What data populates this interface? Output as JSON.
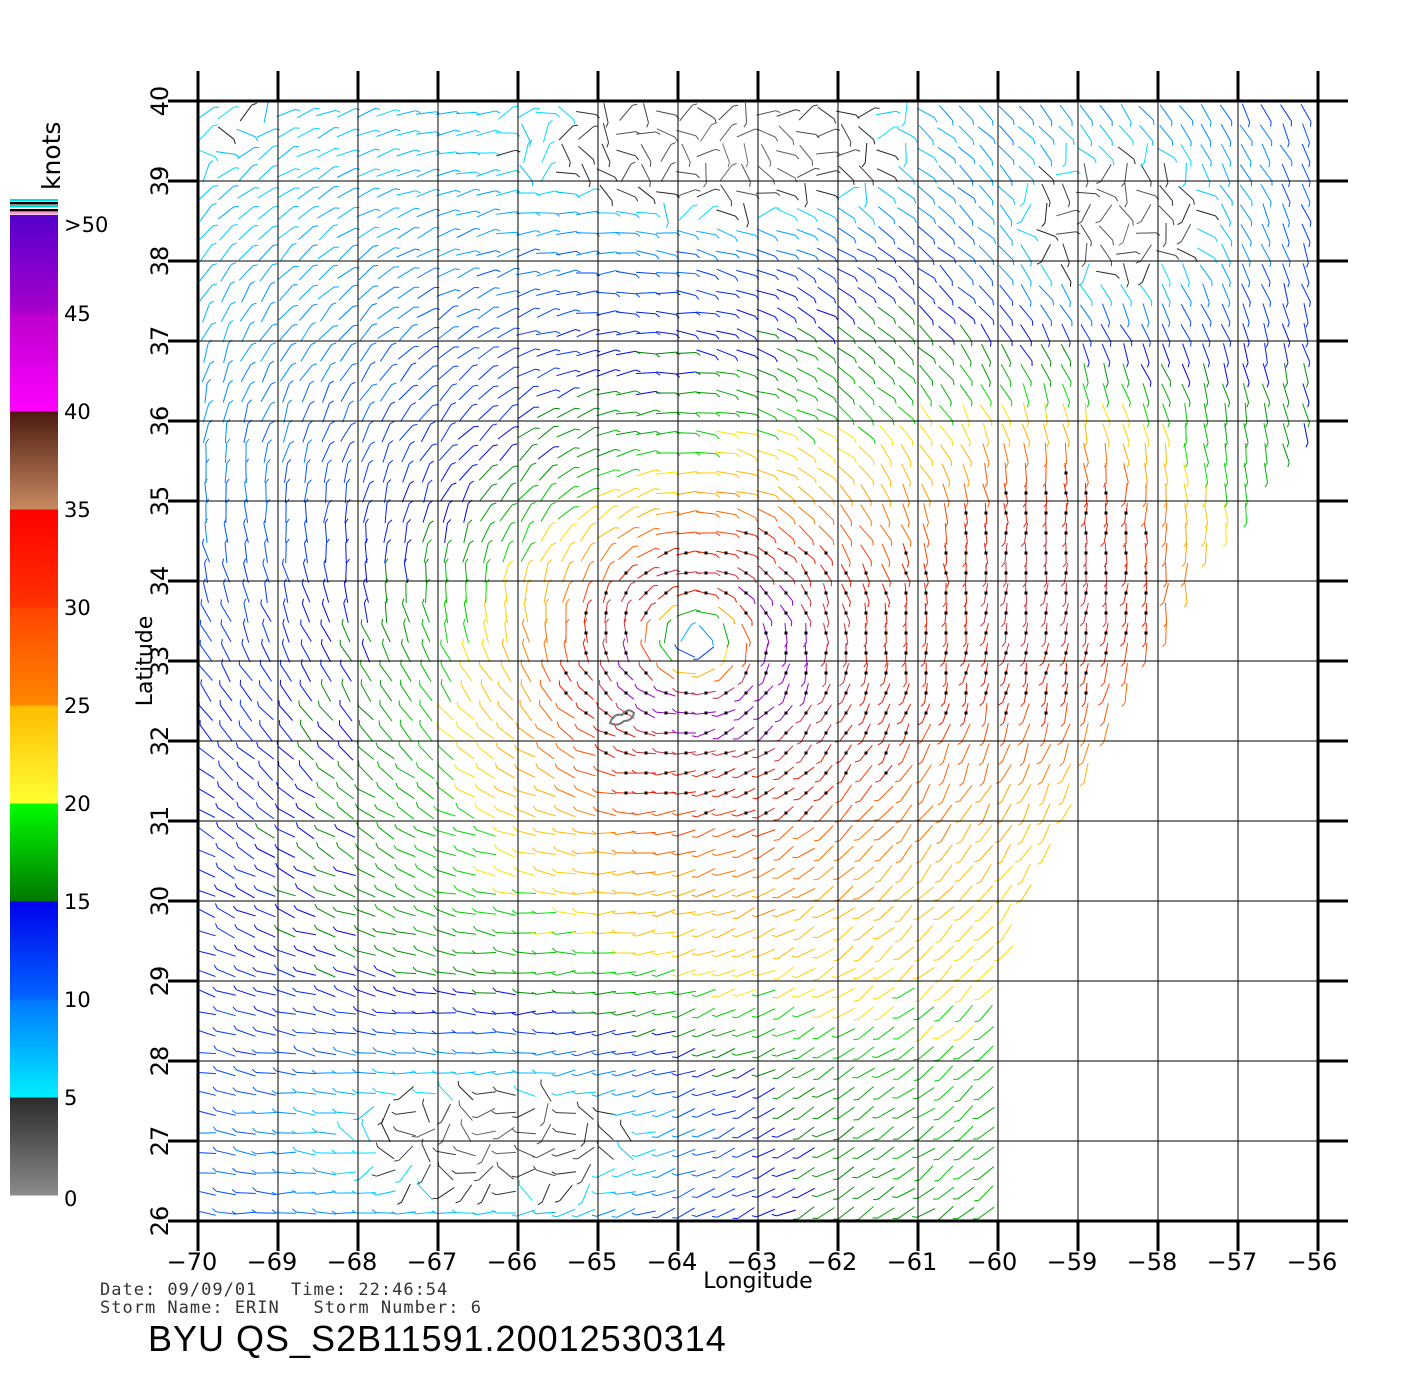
{
  "chart_data": {
    "type": "wind-vector-map",
    "title": "",
    "xlabel": "Longitude",
    "ylabel": "Latitude",
    "xlim": [
      -70,
      -56
    ],
    "ylim": [
      26,
      40
    ],
    "x_ticks": [
      "-70",
      "-69",
      "-68",
      "-67",
      "-66",
      "-65",
      "-64",
      "-63",
      "-62",
      "-61",
      "-60",
      "-59",
      "-58",
      "-57",
      "-56"
    ],
    "y_ticks": [
      "26",
      "27",
      "28",
      "29",
      "30",
      "31",
      "32",
      "33",
      "34",
      "35",
      "36",
      "37",
      "38",
      "39",
      "40"
    ],
    "grid": true,
    "legend": {
      "title": "knots",
      "placement": "left",
      "labels": [
        "0",
        "5",
        "10",
        "15",
        "20",
        "25",
        "30",
        "35",
        "40",
        "45",
        ">50"
      ],
      "bands": [
        {
          "from": 0,
          "to": 5,
          "colors": [
            "#8c8c8c",
            "#2a2a2a"
          ]
        },
        {
          "from": 5,
          "to": 10,
          "colors": [
            "#00eeff",
            "#0077ff"
          ]
        },
        {
          "from": 10,
          "to": 15,
          "colors": [
            "#0066ff",
            "#0000ee"
          ]
        },
        {
          "from": 15,
          "to": 20,
          "colors": [
            "#007700",
            "#00ff00"
          ]
        },
        {
          "from": 20,
          "to": 25,
          "colors": [
            "#ffff33",
            "#ffbb00"
          ]
        },
        {
          "from": 25,
          "to": 30,
          "colors": [
            "#ff8800",
            "#ff4400"
          ]
        },
        {
          "from": 30,
          "to": 35,
          "colors": [
            "#ff3300",
            "#ff0000"
          ]
        },
        {
          "from": 35,
          "to": 40,
          "colors": [
            "#c88a60",
            "#4a1a10"
          ]
        },
        {
          "from": 40,
          "to": 45,
          "colors": [
            "#ff00ff",
            "#bb00cc"
          ]
        },
        {
          "from": 45,
          "to": 50,
          "colors": [
            "#aa00cc",
            "#5500cc"
          ]
        }
      ]
    },
    "storm_center": {
      "lon": -63.7,
      "lat": 33.2,
      "max_wind_knots": 45
    },
    "swath_edge": [
      [
        -56.0,
        40.0
      ],
      [
        -56.0,
        36.0
      ],
      [
        -57.5,
        34.0
      ],
      [
        -59.2,
        31.0
      ],
      [
        -60.0,
        29.0
      ],
      [
        -60.0,
        26.0
      ]
    ],
    "island": {
      "lon": -64.7,
      "lat": 32.3
    }
  },
  "footer": {
    "line1": "Date: 09/09/01   Time: 22:46:54",
    "line2": "Storm Name: ERIN   Storm Number: 6",
    "file_id": "BYU QS_S2B11591.20012530314"
  }
}
